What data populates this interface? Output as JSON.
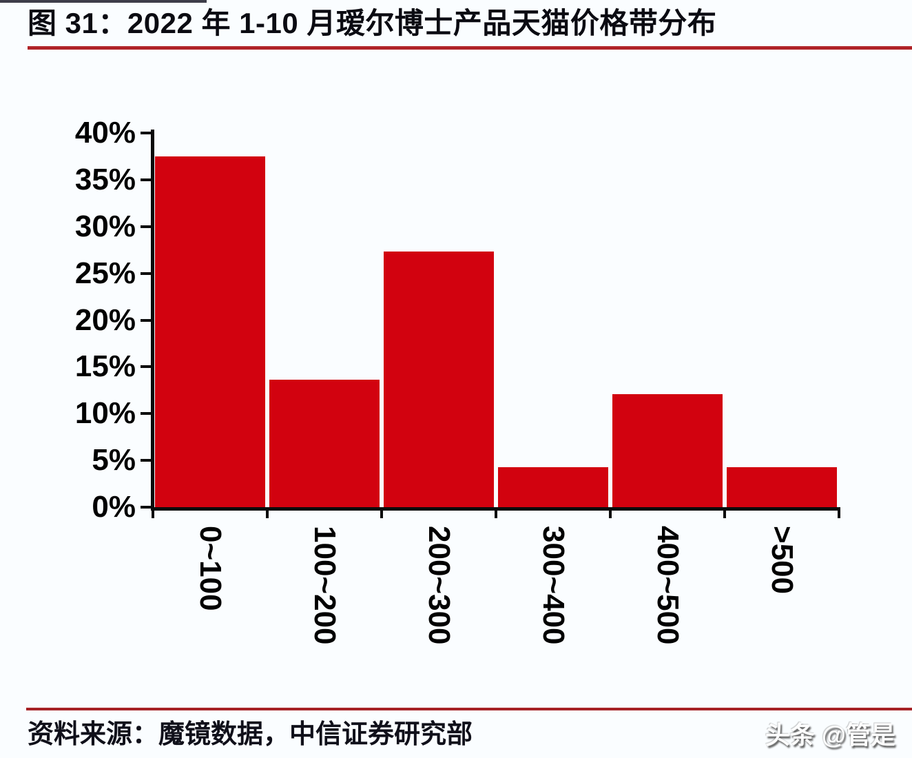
{
  "page": {
    "title": "图 31：2022 年 1-10 月瑷尔博士产品天猫价格带分布",
    "source": "资料来源：魔镜数据，中信证券研究部",
    "watermark": "头条 @管是"
  },
  "colors": {
    "bar": "#d2020f",
    "axis": "#0a0a0a",
    "rule_top": "#b02428",
    "rule_bottom": "#a62226",
    "background": "#fafdff"
  },
  "chart_data": {
    "type": "bar",
    "title": "2022 年 1-10 月瑷尔博士产品天猫价格带分布",
    "categories": [
      "0~100",
      "100~200",
      "200~300",
      "300~400",
      "400~500",
      ">500"
    ],
    "values": [
      37.5,
      13.6,
      27.3,
      4.3,
      12.1,
      4.3
    ],
    "unit": "%",
    "xlabel": "",
    "ylabel": "",
    "ylim": [
      0,
      40
    ],
    "ytick_step": 5,
    "ytick_labels": [
      "0%",
      "5%",
      "10%",
      "15%",
      "20%",
      "25%",
      "30%",
      "35%",
      "40%"
    ],
    "grid": false,
    "legend": false,
    "bar_color": "#d2020f",
    "x_tick_label_rotation_deg": 90
  }
}
